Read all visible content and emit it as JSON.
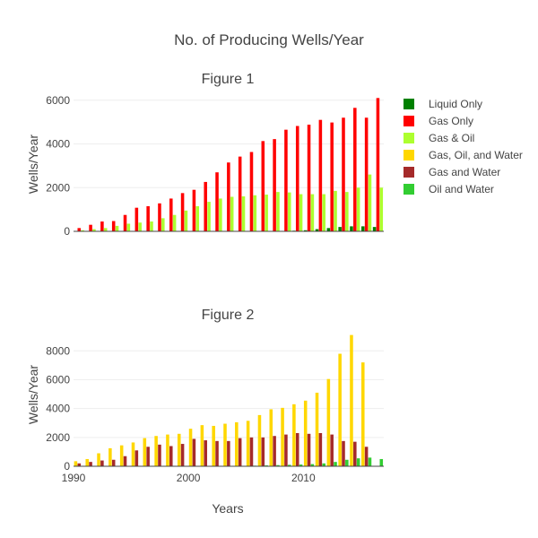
{
  "chart_data": {
    "type": "bar",
    "title": "No. of Producing Wells/Year",
    "xlabel": "Years",
    "x_ticks": [
      1990,
      2000,
      2010
    ],
    "categories": [
      1990,
      1991,
      1992,
      1993,
      1994,
      1995,
      1996,
      1997,
      1998,
      1999,
      2000,
      2001,
      2002,
      2003,
      2004,
      2005,
      2006,
      2007,
      2008,
      2009,
      2010,
      2011,
      2012,
      2013,
      2014,
      2015,
      2016
    ],
    "legend": [
      {
        "name": "Liquid Only",
        "color": "#008000"
      },
      {
        "name": "Gas Only",
        "color": "#ff0000"
      },
      {
        "name": "Gas & Oil",
        "color": "#adff2f"
      },
      {
        "name": "Gas, Oil, and Water",
        "color": "#ffd700"
      },
      {
        "name": "Gas and Water",
        "color": "#a52a2a"
      },
      {
        "name": "Oil and Water",
        "color": "#32cd32"
      }
    ],
    "subplots": [
      {
        "title": "Figure 1",
        "ylabel": "Wells/Year",
        "ylim": [
          0,
          6400
        ],
        "yticks": [
          0,
          2000,
          4000,
          6000
        ],
        "series": [
          {
            "name": "Liquid Only",
            "color": "#008000",
            "values": [
              10,
              10,
              10,
              10,
              10,
              10,
              10,
              10,
              10,
              10,
              10,
              10,
              10,
              10,
              10,
              10,
              10,
              10,
              20,
              30,
              50,
              100,
              150,
              200,
              230,
              230,
              200
            ]
          },
          {
            "name": "Gas Only",
            "color": "#ff0000",
            "values": [
              150,
              300,
              450,
              470,
              750,
              1080,
              1150,
              1280,
              1500,
              1750,
              1900,
              2260,
              2700,
              3150,
              3420,
              3630,
              4130,
              4220,
              4650,
              4820,
              4880,
              5100,
              4980,
              5200,
              5650,
              5200,
              6100
            ]
          },
          {
            "name": "Gas & Oil",
            "color": "#adff2f",
            "values": [
              50,
              100,
              150,
              250,
              350,
              400,
              450,
              600,
              750,
              950,
              1150,
              1350,
              1500,
              1580,
              1600,
              1650,
              1680,
              1800,
              1780,
              1700,
              1700,
              1700,
              1850,
              1800,
              2000,
              2600,
              2000
            ]
          }
        ]
      },
      {
        "title": "Figure 2",
        "ylabel": "Wells/Year",
        "ylim": [
          0,
          9200
        ],
        "yticks": [
          0,
          2000,
          4000,
          6000,
          8000
        ],
        "series": [
          {
            "name": "Gas, Oil, and Water",
            "color": "#ffd700",
            "values": [
              350,
              500,
              900,
              1250,
              1450,
              1650,
              1950,
              2100,
              2200,
              2250,
              2600,
              2850,
              2800,
              2950,
              3050,
              3150,
              3550,
              3950,
              4050,
              4300,
              4550,
              5100,
              6050,
              7800,
              9100,
              7200,
              0
            ]
          },
          {
            "name": "Gas and Water",
            "color": "#a52a2a",
            "values": [
              200,
              300,
              400,
              450,
              700,
              1100,
              1350,
              1500,
              1400,
              1550,
              1900,
              1800,
              1750,
              1750,
              1950,
              2000,
              2000,
              2100,
              2200,
              2300,
              2250,
              2300,
              2200,
              1750,
              1700,
              1350,
              0
            ]
          },
          {
            "name": "Oil and Water",
            "color": "#32cd32",
            "values": [
              10,
              10,
              10,
              10,
              10,
              10,
              10,
              10,
              10,
              10,
              20,
              20,
              20,
              20,
              30,
              40,
              60,
              80,
              100,
              120,
              150,
              200,
              300,
              450,
              550,
              600,
              500
            ]
          }
        ]
      }
    ]
  }
}
